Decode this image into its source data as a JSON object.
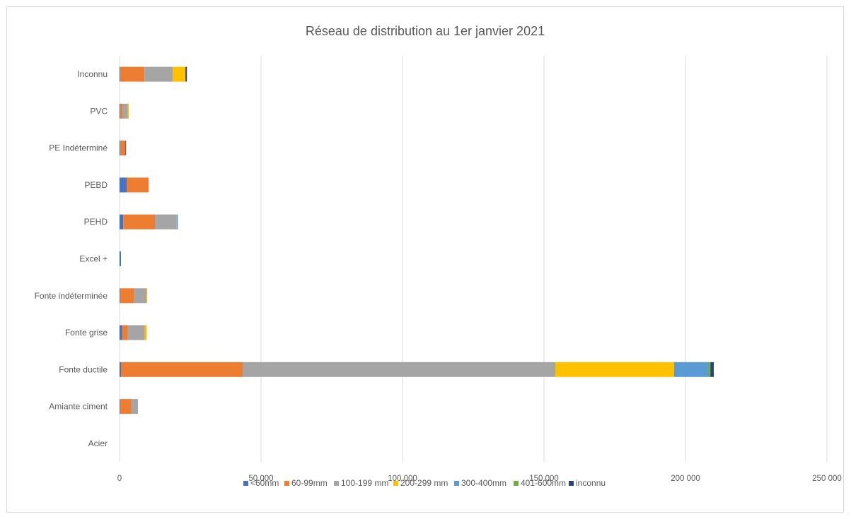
{
  "chart_data": {
    "type": "bar",
    "orientation": "horizontal",
    "stacked": true,
    "title": "Réseau de distribution au 1er janvier 2021",
    "xlabel": "",
    "ylabel": "",
    "xlim": [
      0,
      250000
    ],
    "x_ticks": [
      0,
      50000,
      100000,
      150000,
      200000,
      250000
    ],
    "x_tick_labels": [
      "0",
      "50 000",
      "100 000",
      "150 000",
      "200 000",
      "250 000"
    ],
    "grid": "vertical",
    "legend_position": "bottom",
    "categories": [
      "Acier",
      "Amiante ciment",
      "Fonte ductile",
      "Fonte grise",
      "Fonte indéterminée",
      "Excel +",
      "PEHD",
      "PEBD",
      "PE Indéterminé",
      "PVC",
      "Inconnu"
    ],
    "series": [
      {
        "name": "<60mm",
        "color": "#4472c4",
        "values": [
          0,
          200,
          500,
          900,
          200,
          500,
          1300,
          2500,
          300,
          300,
          300
        ]
      },
      {
        "name": "60-99mm",
        "color": "#ed7d31",
        "values": [
          0,
          4000,
          43000,
          2000,
          5000,
          0,
          11200,
          7800,
          1700,
          800,
          8500
        ]
      },
      {
        "name": "100-199 mm",
        "color": "#a5a5a5",
        "values": [
          0,
          2300,
          110500,
          6000,
          4300,
          0,
          7700,
          0,
          100,
          1800,
          10000
        ]
      },
      {
        "name": "200-299 mm",
        "color": "#ffc000",
        "values": [
          0,
          0,
          42000,
          700,
          300,
          0,
          0,
          0,
          0,
          400,
          4500
        ]
      },
      {
        "name": "300-400mm",
        "color": "#5b9bd5",
        "values": [
          0,
          0,
          12000,
          0,
          0,
          0,
          400,
          0,
          0,
          0,
          0
        ]
      },
      {
        "name": "401-600mm",
        "color": "#70ad47",
        "values": [
          0,
          0,
          800,
          0,
          0,
          0,
          0,
          0,
          0,
          0,
          0
        ]
      },
      {
        "name": "inconnu",
        "color": "#264478",
        "values": [
          0,
          0,
          1200,
          0,
          0,
          0,
          0,
          0,
          100,
          0,
          500
        ]
      }
    ]
  }
}
